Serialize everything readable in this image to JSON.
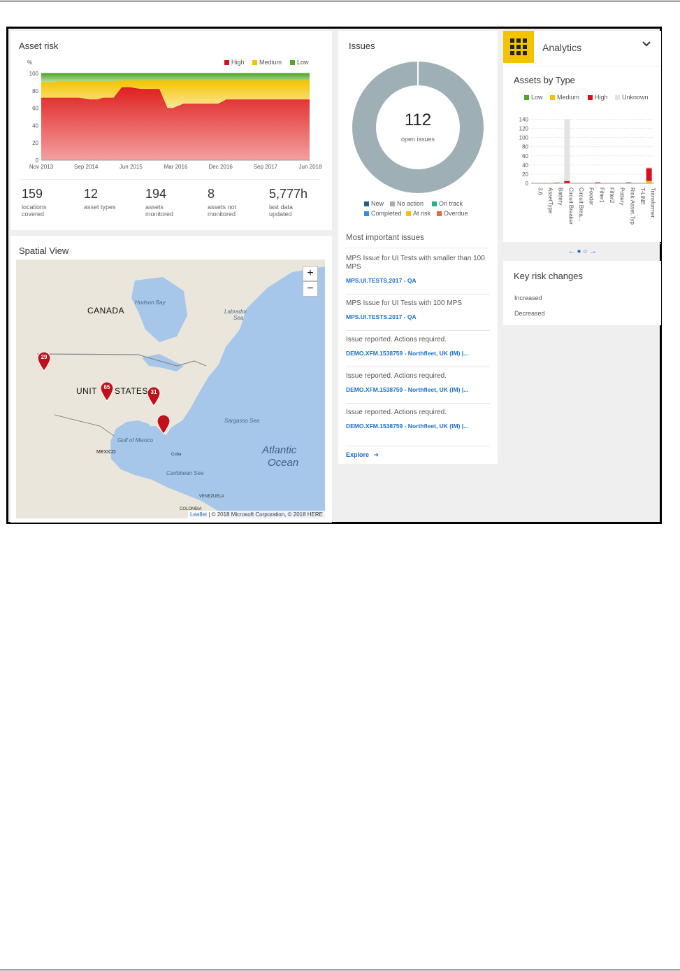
{
  "asset_risk": {
    "title": "Asset risk",
    "y_unit": "%",
    "legend": [
      {
        "label": "High",
        "color": "#d9101b"
      },
      {
        "label": "Medium",
        "color": "#f4c300"
      },
      {
        "label": "Low",
        "color": "#52a62c"
      }
    ],
    "chart_data": {
      "type": "area",
      "x_tick_labels": [
        "Nov 2013",
        "Sep 2014",
        "Jun 2015",
        "Mar 2016",
        "Dec 2016",
        "Sep 2017",
        "Jun 2018"
      ],
      "y_tick_labels": [
        "0",
        "20",
        "40",
        "60",
        "80",
        "100"
      ],
      "ylim": [
        0,
        100
      ],
      "stacked": true,
      "x": [
        0,
        0.04,
        0.07,
        0.11,
        0.14,
        0.18,
        0.21,
        0.23,
        0.27,
        0.3,
        0.33,
        0.37,
        0.44,
        0.47,
        0.49,
        0.53,
        0.56,
        0.59,
        0.63,
        0.66,
        0.69,
        0.73,
        0.76,
        0.8,
        0.84,
        0.88,
        0.93,
        1.0
      ],
      "series": [
        {
          "name": "High",
          "values": [
            72,
            72,
            72,
            72,
            72,
            70,
            70,
            72,
            72,
            84,
            84,
            82,
            82,
            60,
            60,
            65,
            65,
            65,
            65,
            65,
            70,
            70,
            70,
            70,
            70,
            70,
            70,
            70
          ]
        },
        {
          "name": "Medium",
          "values": [
            18,
            18,
            19,
            19,
            19,
            21,
            21,
            19,
            19,
            8,
            8,
            10,
            10,
            32,
            32,
            27,
            27,
            27,
            27,
            27,
            22,
            22,
            22,
            22,
            22,
            22,
            22,
            22
          ]
        },
        {
          "name": "Low",
          "values": [
            10,
            10,
            9,
            9,
            9,
            9,
            9,
            9,
            9,
            8,
            8,
            8,
            8,
            8,
            8,
            8,
            8,
            8,
            8,
            8,
            8,
            8,
            8,
            8,
            8,
            8,
            8,
            8
          ]
        }
      ]
    },
    "stats": [
      {
        "value": "159",
        "label_lines": [
          "locations",
          "covered"
        ]
      },
      {
        "value": "12",
        "label_lines": [
          "asset types"
        ]
      },
      {
        "value": "194",
        "label_lines": [
          "assets",
          "monitored"
        ]
      },
      {
        "value": "8",
        "label_lines": [
          "assets not",
          "monitored"
        ]
      },
      {
        "value": "5,777h",
        "label_lines": [
          "last data",
          "updated"
        ]
      }
    ]
  },
  "spatial_view": {
    "title": "Spatial View",
    "labels": {
      "canada": "CANADA",
      "hudson": "Hudson Bay",
      "labrador_1": "Labrador",
      "labrador_2": "Sea",
      "us_1": "UNIT",
      "us_2": "STATES",
      "sargasso": "Sargasso Sea",
      "gulf": "Gulf of Mexico",
      "mexico": "MEXICO",
      "atlantic_1": "Atlantic",
      "atlantic_2": "Ocean",
      "caribbean": "Caribbean Sea",
      "venezuela": "VENEZUELA",
      "colombia": "COLOMBIA",
      "cuba": "Cuba"
    },
    "markers": [
      {
        "label": "29"
      },
      {
        "label": "65"
      },
      {
        "label": "31"
      },
      {
        "label": ""
      }
    ],
    "zoom_in": "+",
    "zoom_out": "−",
    "attribution_link": "Leaflet",
    "attribution_text": " | © 2018 Microsoft Corporation, © 2018 HERE"
  },
  "issues": {
    "title": "Issues",
    "total": "112",
    "total_label": "open issues",
    "chart_data": {
      "type": "pie",
      "categories": [
        "New",
        "No action",
        "On track",
        "Completed",
        "At risk",
        "Overdue"
      ],
      "values": [
        0,
        112,
        0,
        0,
        0,
        0
      ]
    },
    "legend": [
      {
        "label": "New",
        "color": "#1f5f8b"
      },
      {
        "label": "No action",
        "color": "#9eb0b5"
      },
      {
        "label": "On track",
        "color": "#27b08a"
      },
      {
        "label": "Completed",
        "color": "#2f8fe0"
      },
      {
        "label": "At risk",
        "color": "#f4c300"
      },
      {
        "label": "Overdue",
        "color": "#e8663d"
      }
    ],
    "most_important_title": "Most important issues",
    "items": [
      {
        "title": "MPS Issue for UI Tests with smaller than 100 MPS",
        "link": "MPS.UI.TESTS.2017 - QA"
      },
      {
        "title": "MPS Issue for UI Tests with 100 MPS",
        "link": "MPS.UI.TESTS.2017 - QA"
      },
      {
        "title": "Issue reported. Actions required.",
        "link": "DEMO.XFM.1538759 - Northfleet, UK (IM) |..."
      },
      {
        "title": "Issue reported. Actions required.",
        "link": "DEMO.XFM.1538759 - Northfleet, UK (IM) |..."
      },
      {
        "title": "Issue reported. Actions required.",
        "link": "DEMO.XFM.1538759 - Northfleet, UK (IM) |..."
      }
    ],
    "explore": "Explore"
  },
  "analytics": {
    "title": "Analytics",
    "assets_by_type": {
      "title": "Assets by Type",
      "legend": [
        {
          "label": "Low",
          "color": "#52a62c"
        },
        {
          "label": "Medium",
          "color": "#f4c300"
        },
        {
          "label": "High",
          "color": "#d9101b"
        },
        {
          "label": "Unknown",
          "color": "#e3e3e3"
        }
      ],
      "chart_data": {
        "type": "bar",
        "stacked": true,
        "ylim": [
          0,
          150
        ],
        "y_tick_labels": [
          "0",
          "20",
          "40",
          "60",
          "80",
          "100",
          "120",
          "140"
        ],
        "categories": [
          "3.6",
          "AssetType",
          "Battery",
          "Circuit Breaker",
          "Circuit Brea...",
          "Feeder",
          "Filter1",
          "Filter2",
          "Pottery",
          "Risk.Asset.Typ",
          "T-LINE",
          "Transformer"
        ],
        "series": [
          {
            "name": "Low",
            "values": [
              0,
              0,
              0,
              0,
              0,
              0,
              0,
              0,
              0,
              0,
              0,
              0
            ]
          },
          {
            "name": "Medium",
            "values": [
              0,
              1,
              2,
              0,
              1,
              1,
              0,
              0,
              0,
              1,
              1,
              5
            ]
          },
          {
            "name": "High",
            "values": [
              0,
              0,
              0,
              5,
              0,
              0,
              2,
              0,
              0,
              1,
              0,
              28
            ]
          },
          {
            "name": "Unknown",
            "values": [
              1,
              0,
              1,
              135,
              0,
              0,
              0,
              1,
              0,
              1,
              0,
              2
            ]
          }
        ]
      },
      "pager": [
        "←",
        "→"
      ]
    },
    "key_risk_changes": {
      "title": "Key risk changes",
      "items": [
        "Increased",
        "Decreased"
      ]
    }
  }
}
